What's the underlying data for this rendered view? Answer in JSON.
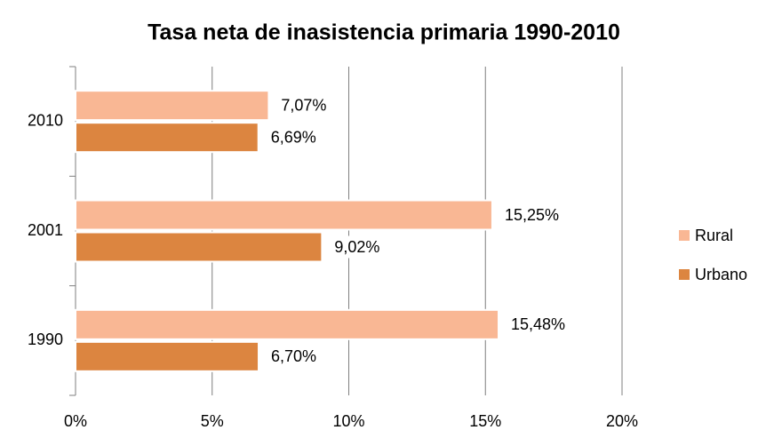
{
  "chart_data": {
    "type": "barh",
    "title": "Tasa neta de inasistencia primaria 1990-2010",
    "categories": [
      "1990",
      "2001",
      "2010"
    ],
    "series": [
      {
        "name": "Rural",
        "color": "#f9b794",
        "values": [
          15.48,
          15.25,
          7.07
        ],
        "value_labels": [
          "15,48%",
          "15,25%",
          "7,07%"
        ]
      },
      {
        "name": "Urbano",
        "color": "#dc8540",
        "values": [
          6.7,
          9.02,
          6.69
        ],
        "value_labels": [
          "6,70%",
          "9,02%",
          "6,69%"
        ]
      }
    ],
    "xlim": [
      0,
      20
    ],
    "xticks": [
      {
        "value": 0,
        "label": "0%"
      },
      {
        "value": 5,
        "label": "5%"
      },
      {
        "value": 10,
        "label": "10%"
      },
      {
        "value": 15,
        "label": "15%"
      },
      {
        "value": 20,
        "label": "20%"
      }
    ],
    "grid": true,
    "legend": "right"
  }
}
